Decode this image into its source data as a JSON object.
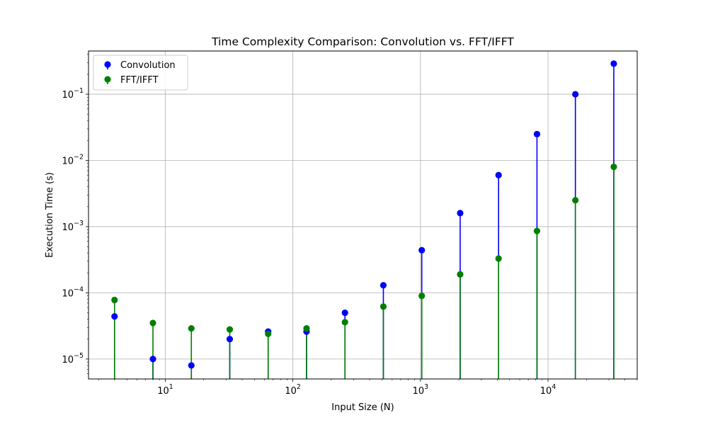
{
  "chart_data": {
    "type": "scatter",
    "subtype": "stem",
    "title": "Time Complexity Comparison: Convolution vs. FFT/IFFT",
    "xlabel": "Input Size (N)",
    "ylabel": "Execution Time (s)",
    "xscale": "log",
    "yscale": "log",
    "xlim": [
      2.5,
      50000
    ],
    "ylim": [
      5e-06,
      0.45
    ],
    "grid": true,
    "legend_position": "upper-left",
    "x_ticks": [
      {
        "value": 10,
        "base": "10",
        "exp": "1"
      },
      {
        "value": 100,
        "base": "10",
        "exp": "2"
      },
      {
        "value": 1000,
        "base": "10",
        "exp": "3"
      },
      {
        "value": 10000,
        "base": "10",
        "exp": "4"
      }
    ],
    "y_ticks": [
      {
        "value": 1e-05,
        "base": "10",
        "exp": "−5"
      },
      {
        "value": 0.0001,
        "base": "10",
        "exp": "−4"
      },
      {
        "value": 0.001,
        "base": "10",
        "exp": "−3"
      },
      {
        "value": 0.01,
        "base": "10",
        "exp": "−2"
      },
      {
        "value": 0.1,
        "base": "10",
        "exp": "−1"
      }
    ],
    "x": [
      4,
      8,
      16,
      32,
      64,
      128,
      256,
      512,
      1024,
      2048,
      4096,
      8192,
      16384,
      32768
    ],
    "series": [
      {
        "name": "Convolution",
        "color": "#0000ff",
        "values": [
          4.4e-05,
          1e-05,
          8e-06,
          2e-05,
          2.6e-05,
          2.6e-05,
          5e-05,
          0.00013,
          0.00044,
          0.0016,
          0.006,
          0.025,
          0.1,
          0.29
        ]
      },
      {
        "name": "FFT/IFFT",
        "color": "#008000",
        "values": [
          7.8e-05,
          3.5e-05,
          2.9e-05,
          2.8e-05,
          2.4e-05,
          2.9e-05,
          3.6e-05,
          6.2e-05,
          9e-05,
          0.00019,
          0.00033,
          0.00086,
          0.0025,
          0.008
        ]
      }
    ]
  }
}
